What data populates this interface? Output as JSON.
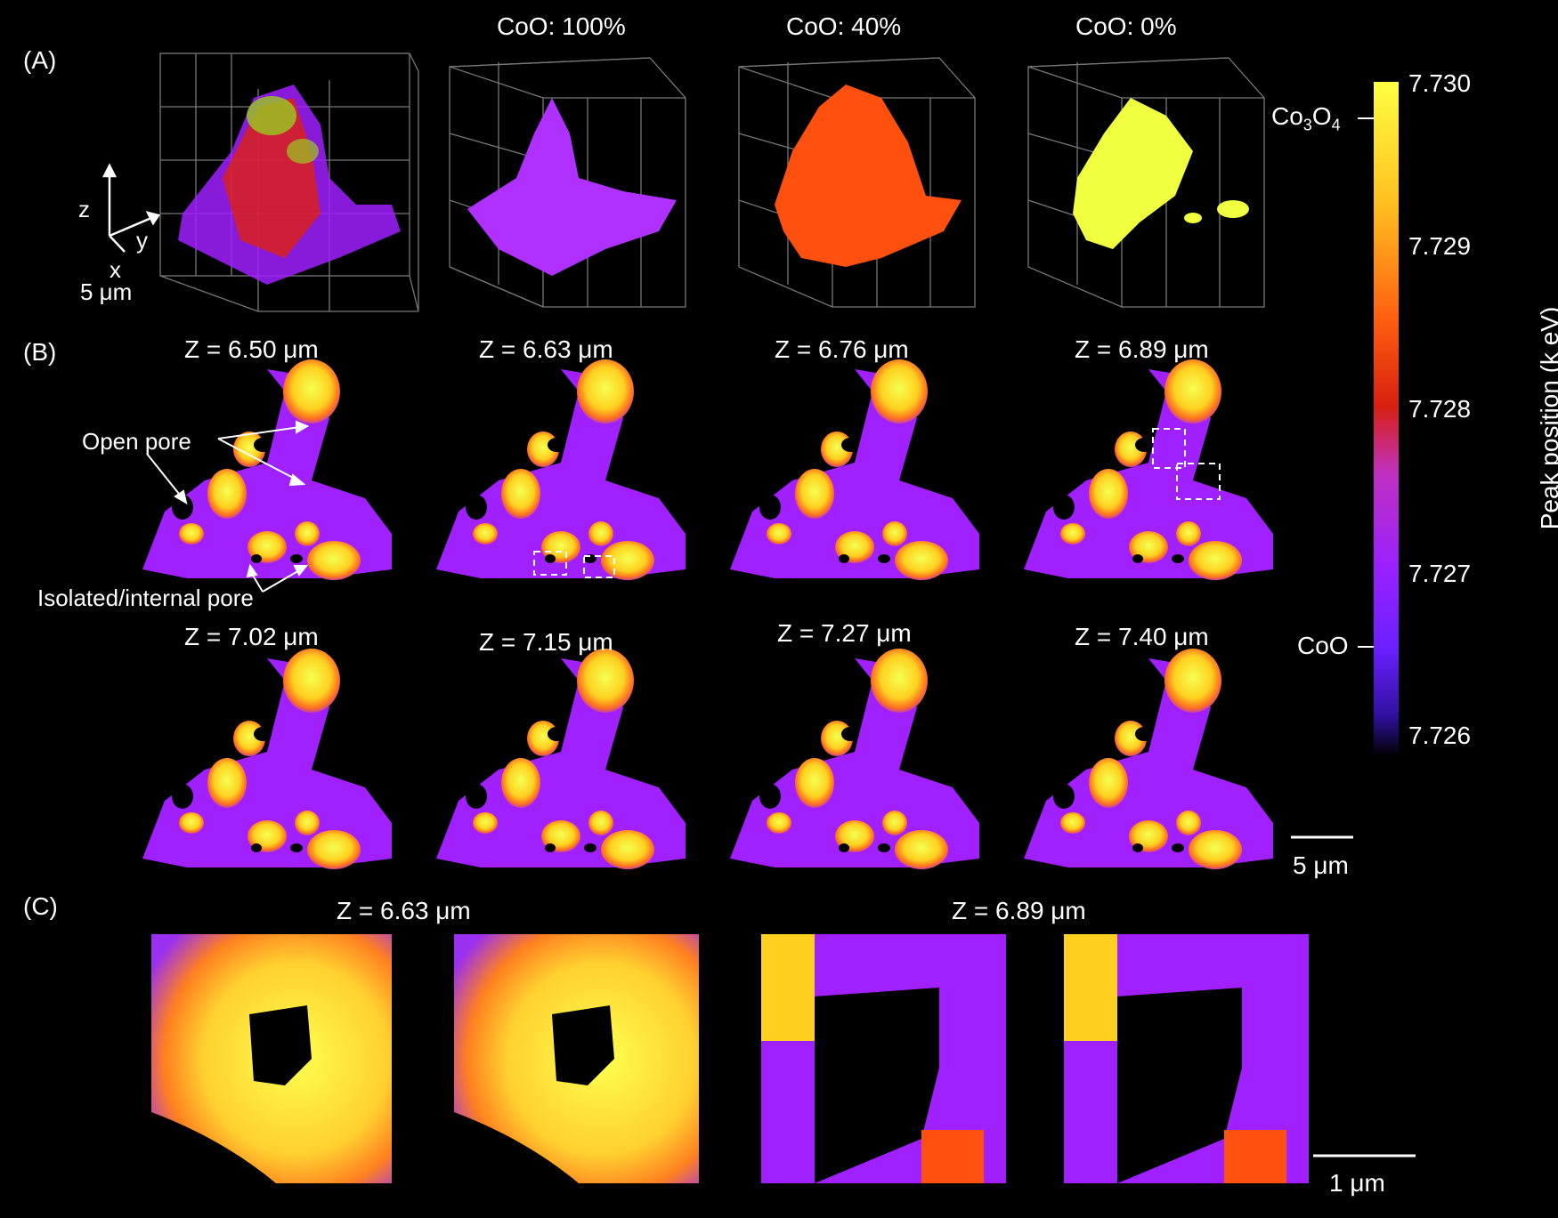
{
  "panels": {
    "a": "(A)",
    "b": "(B)",
    "c": "(C)"
  },
  "row_a": {
    "headers": [
      "CoO: 100%",
      "CoO: 40%",
      "CoO: 0%"
    ],
    "axes": {
      "z": "z",
      "y": "y",
      "x": "x"
    },
    "scale": "5 μm"
  },
  "row_b": {
    "slices": [
      "Z = 6.50 μm",
      "Z = 6.63 μm",
      "Z = 6.76 μm",
      "Z = 6.89 μm",
      "Z = 7.02 μm",
      "Z = 7.15 μm",
      "Z = 7.27 μm",
      "Z = 7.40 μm"
    ],
    "open_pore": "Open pore",
    "isolated_pore": "Isolated/internal pore",
    "scale": "5 μm"
  },
  "row_c": {
    "slices": [
      "Z = 6.63 μm",
      "Z = 6.89 μm"
    ],
    "scale": "1 μm"
  },
  "colorbar": {
    "ticks": [
      "7.730",
      "7.729",
      "7.728",
      "7.727",
      "7.726"
    ],
    "title": "Peak position (k eV)",
    "co3o4": {
      "main": "Co",
      "sub1": "3",
      "mid": "O",
      "sub2": "4"
    },
    "coo": "CoO"
  },
  "colors": {
    "purple": "#a020ff",
    "orange": "#ff5010",
    "yellow": "#f0ff40",
    "gold": "#ffd020",
    "background": "#000000"
  }
}
